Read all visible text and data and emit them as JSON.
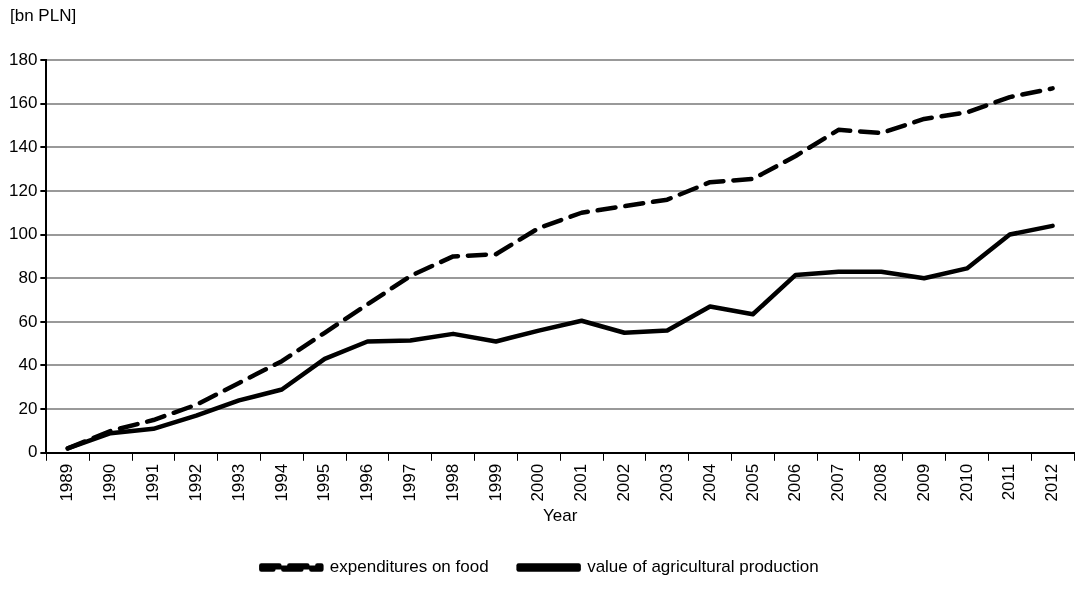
{
  "chart_data": {
    "type": "line",
    "xlabel": "Year",
    "ylabel": "[bn PLN]",
    "categories": [
      "1989",
      "1990",
      "1991",
      "1992",
      "1993",
      "1994",
      "1995",
      "1996",
      "1997",
      "1998",
      "1999",
      "2000",
      "2001",
      "2002",
      "2003",
      "2004",
      "2005",
      "2006",
      "2007",
      "2008",
      "2009",
      "2010",
      "2011",
      "2012"
    ],
    "series": [
      {
        "name": "expenditures on food",
        "color": "#000000",
        "line_style": "dashed",
        "values": [
          2,
          10,
          15,
          22,
          32,
          42,
          55,
          68,
          81,
          90,
          91,
          103,
          110,
          113,
          116,
          124,
          125.5,
          136,
          148,
          146.5,
          153,
          156,
          163,
          167
        ]
      },
      {
        "name": "value of agricultural production",
        "color": "#000000",
        "line_style": "solid",
        "values": [
          2,
          9,
          11,
          17,
          24,
          29,
          43,
          51,
          51.5,
          54.5,
          51,
          56,
          60.5,
          55,
          56,
          67,
          63.5,
          81.5,
          83,
          83,
          80,
          84.5,
          100,
          104
        ]
      }
    ],
    "ylim": [
      0,
      180
    ],
    "yticks": [
      0,
      20,
      40,
      60,
      80,
      100,
      120,
      140,
      160,
      180
    ],
    "grid": "y",
    "legend": "bottom",
    "marker": "none"
  }
}
